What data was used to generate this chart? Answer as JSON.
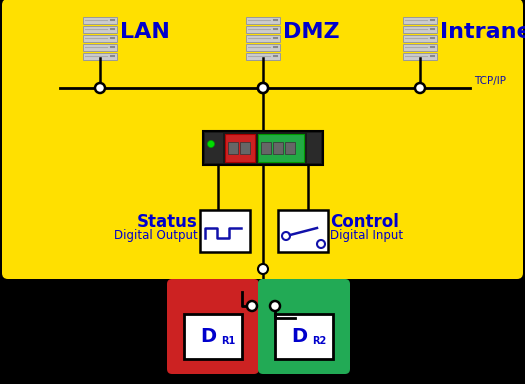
{
  "bg_yellow": "#FFE000",
  "bg_black": "#000000",
  "blue_text": "#0000CC",
  "blue_dark": "#1111AA",
  "red_card": "#CC2222",
  "green_card": "#22AA55",
  "white": "#FFFFFF",
  "black": "#000000",
  "gray_server": "#CCCCCC",
  "gray_server_edge": "#999999",
  "gray_server_line": "#AAAAAA",
  "device_dark": "#1A1A1A",
  "device_red": "#CC2222",
  "device_green": "#22AA44",
  "device_port": "#777777",
  "tcp_label": "TCP/IP",
  "lan_label": "LAN",
  "dmz_label": "DMZ",
  "intranet_label": "Intranet",
  "status_label": "Status",
  "status_sub": "Digital Output",
  "control_label": "Control",
  "control_sub": "Digital Input"
}
